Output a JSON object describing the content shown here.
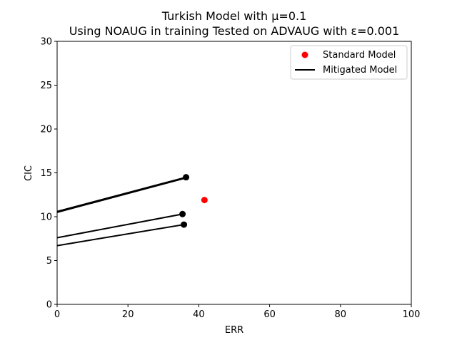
{
  "chart_data": {
    "type": "line",
    "title_line1": "Turkish Model with μ=0.1",
    "title_line2": "Using NOAUG in training Tested on ADVAUG with ε=0.001",
    "xlabel": "ERR",
    "ylabel": "CIC",
    "xlim": [
      0,
      100
    ],
    "ylim": [
      0,
      30
    ],
    "xticks": [
      0,
      20,
      40,
      60,
      80,
      100
    ],
    "yticks": [
      0,
      5,
      10,
      15,
      20,
      25,
      30
    ],
    "grid": false,
    "legend_position": "top-right",
    "legend": [
      {
        "label": "Standard Model",
        "marker": "dot",
        "color": "#ff0000"
      },
      {
        "label": "Mitigated Model",
        "marker": "line",
        "color": "#000000"
      }
    ],
    "standard_points": [
      {
        "x": 41.6,
        "y": 11.9
      }
    ],
    "mitigated_lines": [
      {
        "x": [
          0,
          36.4
        ],
        "y": [
          10.6,
          14.5
        ],
        "endpoint": true
      },
      {
        "x": [
          0,
          36.2
        ],
        "y": [
          10.5,
          14.4
        ],
        "endpoint": false
      },
      {
        "x": [
          0,
          35.4
        ],
        "y": [
          7.6,
          10.3
        ],
        "endpoint": true
      },
      {
        "x": [
          0,
          35.8
        ],
        "y": [
          6.7,
          9.1
        ],
        "endpoint": true
      }
    ]
  }
}
